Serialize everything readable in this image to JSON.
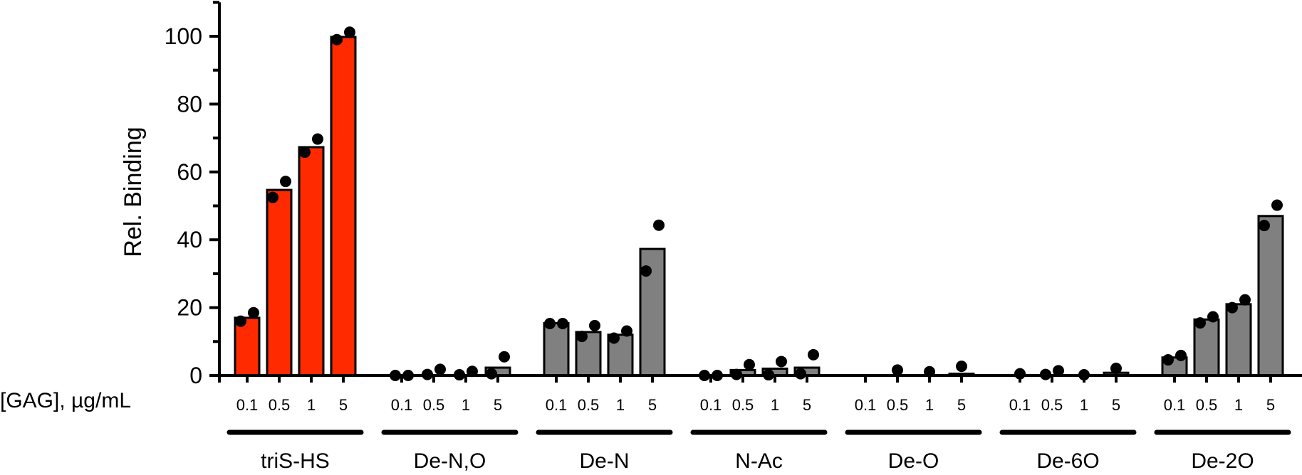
{
  "chart_data": {
    "type": "bar",
    "ylabel": "Rel. Binding",
    "xlabel": "[GAG], µg/mL",
    "ylim": [
      0,
      110
    ],
    "yticks": [
      0,
      20,
      40,
      60,
      80,
      100
    ],
    "grid": false,
    "legend": "none",
    "concentrations": [
      "0.1",
      "0.5",
      "1",
      "5"
    ],
    "colors": {
      "highlight": "#ff2a00",
      "default": "#808080",
      "outline": "#000000",
      "point": "#000000"
    },
    "groups": [
      {
        "name": "triS-HS",
        "highlight": true,
        "values": [
          17,
          54.7,
          67.3,
          99.8
        ],
        "points": [
          [
            16,
            18.5
          ],
          [
            52.5,
            57.2
          ],
          [
            65.8,
            69.7
          ],
          [
            99,
            101.2
          ]
        ]
      },
      {
        "name": "De-N,O",
        "highlight": false,
        "values": [
          0,
          0,
          0,
          2.3
        ],
        "points": [
          [
            0,
            0
          ],
          [
            0.3,
            1.8
          ],
          [
            0.2,
            1.2
          ],
          [
            0.5,
            5.5
          ]
        ]
      },
      {
        "name": "De-N",
        "highlight": false,
        "values": [
          15.4,
          12.8,
          12,
          37.3
        ],
        "points": [
          [
            15.3,
            15.3
          ],
          [
            11.5,
            14.7
          ],
          [
            11,
            13.1
          ],
          [
            30.8,
            44.3
          ]
        ]
      },
      {
        "name": "N-Ac",
        "highlight": false,
        "values": [
          0,
          1.6,
          2,
          2.3
        ],
        "points": [
          [
            0,
            0
          ],
          [
            0.3,
            3.2
          ],
          [
            0.2,
            4.1
          ],
          [
            0.5,
            6.1
          ]
        ]
      },
      {
        "name": "De-O",
        "highlight": false,
        "values": [
          0,
          0,
          0,
          0.5
        ],
        "points": [
          [],
          [
            1.6
          ],
          [
            1.1
          ],
          [
            2.7
          ]
        ]
      },
      {
        "name": "De-6O",
        "highlight": false,
        "values": [
          0,
          0,
          0,
          0.8
        ],
        "points": [
          [
            0.5
          ],
          [
            0.3,
            1.4
          ],
          [
            0.2
          ],
          [
            2.1
          ]
        ]
      },
      {
        "name": "De-2O",
        "highlight": false,
        "values": [
          5.3,
          16.5,
          21,
          47
        ],
        "points": [
          [
            4.6,
            5.9
          ],
          [
            15.5,
            17.3
          ],
          [
            20,
            22.3
          ],
          [
            44.2,
            50.2
          ]
        ]
      }
    ]
  }
}
